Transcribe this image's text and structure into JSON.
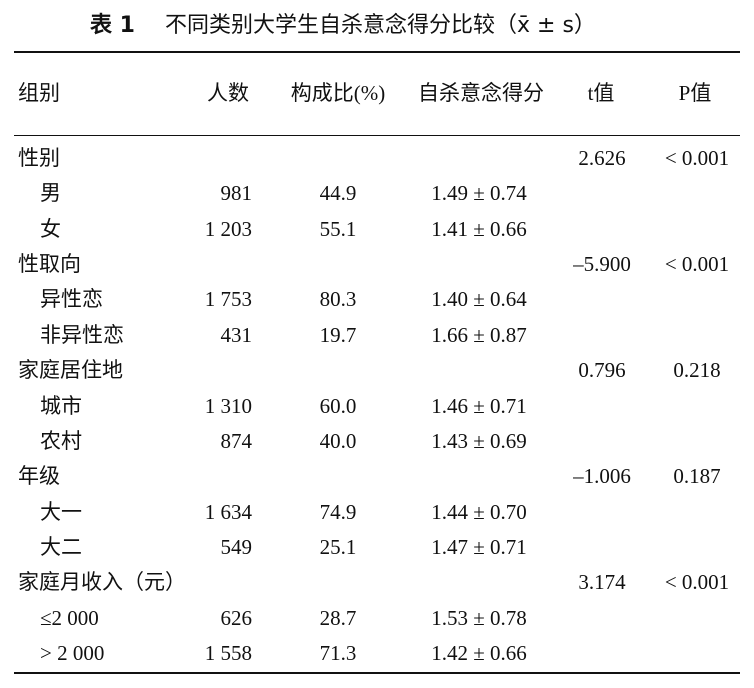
{
  "table": {
    "title_label": "表 1",
    "title": "不同类别大学生自杀意念得分比较（x̄ ± s）",
    "headers": [
      "组别",
      "人数",
      "构成比(%)",
      "自杀意念得分",
      "t值",
      "P值"
    ],
    "groups": [
      {
        "label": "性别",
        "t": "2.626",
        "p": "< 0.001",
        "items": [
          {
            "label": "男",
            "n": "981",
            "pct": "44.9",
            "score": "1.49 ± 0.74"
          },
          {
            "label": "女",
            "n": "1 203",
            "pct": "55.1",
            "score": "1.41 ± 0.66"
          }
        ]
      },
      {
        "label": "性取向",
        "t": "–5.900",
        "p": "< 0.001",
        "items": [
          {
            "label": "异性恋",
            "n": "1 753",
            "pct": "80.3",
            "score": "1.40 ± 0.64"
          },
          {
            "label": "非异性恋",
            "n": "431",
            "pct": "19.7",
            "score": "1.66 ± 0.87"
          }
        ]
      },
      {
        "label": "家庭居住地",
        "t": "0.796",
        "p": "0.218",
        "items": [
          {
            "label": "城市",
            "n": "1 310",
            "pct": "60.0",
            "score": "1.46 ± 0.71"
          },
          {
            "label": "农村",
            "n": "874",
            "pct": "40.0",
            "score": "1.43 ± 0.69"
          }
        ]
      },
      {
        "label": "年级",
        "t": "–1.006",
        "p": "0.187",
        "items": [
          {
            "label": "大一",
            "n": "1 634",
            "pct": "74.9",
            "score": "1.44 ± 0.70"
          },
          {
            "label": "大二",
            "n": "549",
            "pct": "25.1",
            "score": "1.47 ± 0.71"
          }
        ]
      },
      {
        "label": "家庭月收入（元）",
        "t": "3.174",
        "p": "< 0.001",
        "items": [
          {
            "label": "≤2 000",
            "n": "626",
            "pct": "28.7",
            "score": "1.53 ± 0.78"
          },
          {
            "label": "> 2 000",
            "n": "1 558",
            "pct": "71.3",
            "score": "1.42 ± 0.66"
          }
        ]
      }
    ]
  }
}
